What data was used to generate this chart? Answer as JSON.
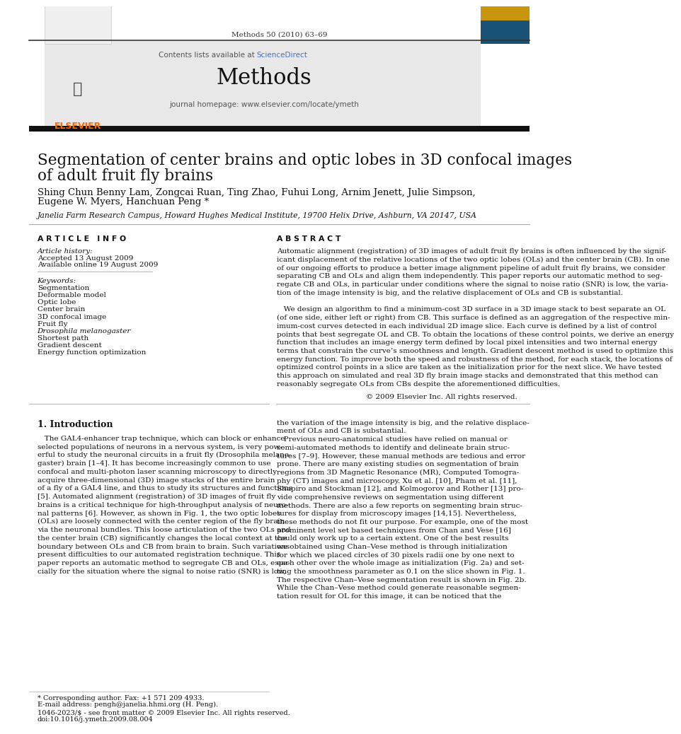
{
  "page_width": 9.92,
  "page_height": 13.23,
  "bg_color": "#ffffff",
  "top_margin_text": "Methods 50 (2010) 63–69",
  "journal_name": "Methods",
  "contents_text": "Contents lists available at ScienceDirect",
  "sciencedirect_color": "#4472c4",
  "homepage_text": "journal homepage: www.elsevier.com/locate/ymeth",
  "header_bg": "#e8e8e8",
  "title_line1": "Segmentation of center brains and optic lobes in 3D confocal images",
  "title_line2": "of adult fruit fly brains",
  "authors_line1": "Shing Chun Benny Lam, Zongcai Ruan, Ting Zhao, Fuhui Long, Arnim Jenett, Julie Simpson,",
  "authors_line2": "Eugene W. Myers, Hanchuan Peng *",
  "affiliation": "Janelia Farm Research Campus, Howard Hughes Medical Institute, 19700 Helix Drive, Ashburn, VA 20147, USA",
  "article_info_header": "A R T I C L E   I N F O",
  "article_history_label": "Article history:",
  "accepted": "Accepted 13 August 2009",
  "available": "Available online 19 August 2009",
  "keywords_header": "Keywords:",
  "keywords": [
    "Segmentation",
    "Deformable model",
    "Optic lobe",
    "Center brain",
    "3D confocal image",
    "Fruit fly",
    "Drosophila melanogaster",
    "Shortest path",
    "Gradient descent",
    "Energy function optimization"
  ],
  "keywords_italic": [
    "Drosophila melanogaster"
  ],
  "abstract_header": "A B S T R A C T",
  "abs_p1": "Automatic alignment (registration) of 3D images of adult fruit fly brains is often influenced by the signif-\nicant displacement of the relative locations of the two optic lobes (OLs) and the center brain (CB). In one\nof our ongoing efforts to produce a better image alignment pipeline of adult fruit fly brains, we consider\nseparating CB and OLs and align them independently. This paper reports our automatic method to seg-\nregate CB and OLs, in particular under conditions where the signal to noise ratio (SNR) is low, the varia-\ntion of the image intensity is big, and the relative displacement of OLs and CB is substantial.",
  "abs_p2": "   We design an algorithm to find a minimum-cost 3D surface in a 3D image stack to best separate an OL\n(of one side, either left or right) from CB. This surface is defined as an aggregation of the respective min-\nimum-cost curves detected in each individual 2D image slice. Each curve is defined by a list of control\npoints that best segregate OL and CB. To obtain the locations of these control points, we derive an energy\nfunction that includes an image energy term defined by local pixel intensities and two internal energy\nterms that constrain the curve’s smoothness and length. Gradient descent method is used to optimize this\nenergy function. To improve both the speed and robustness of the method, for each stack, the locations of\noptimized control points in a slice are taken as the initialization prior for the next slice. We have tested\nthis approach on simulated and real 3D fly brain image stacks and demonstrated that this method can\nreasonably segregate OLs from CBs despite the aforementioned difficulties.",
  "copyright_text": "© 2009 Elsevier Inc. All rights reserved.",
  "section1_header": "1. Introduction",
  "intro_col1": "   The GAL4-enhancer trap technique, which can block or enhance\nselected populations of neurons in a nervous system, is very pow-\nerful to study the neuronal circuits in a fruit fly (Drosophila melano-\ngaster) brain [1–4]. It has become increasingly common to use\nconfocal and multi-photon laser scanning microscopy to directly\nacquire three-dimensional (3D) image stacks of the entire brain\nof a fly of a GAL4 line, and thus to study its structures and functions\n[5]. Automated alignment (registration) of 3D images of fruit fly\nbrains is a critical technique for high-throughput analysis of neuro-\nnal patterns [6]. However, as shown in Fig. 1, the two optic lobes\n(OLs) are loosely connected with the center region of the fly brain\nvia the neuronal bundles. This loose articulation of the two OLs and\nthe center brain (CB) significantly changes the local context at the\nboundary between OLs and CB from brain to brain. Such variations\npresent difficulties to our automated registration technique. This\npaper reports an automatic method to segregate CB and OLs, espe-\ncially for the situation where the signal to noise ratio (SNR) is low,",
  "intro_col2": "the variation of the image intensity is big, and the relative displace-\nment of OLs and CB is substantial.\n   Previous neuro-anatomical studies have relied on manual or\nsemi-automated methods to identify and delineate brain struc-\ntures [7–9]. However, these manual methods are tedious and error\nprone. There are many existing studies on segmentation of brain\nregions from 3D Magnetic Resonance (MR), Computed Tomogra-\nphy (CT) images and microscopy. Xu et al. [10], Pham et al. [11],\nShapiro and Stockman [12], and Kolmogorov and Rother [13] pro-\nvide comprehensive reviews on segmentation using different\nmethods. There are also a few reports on segmenting brain struc-\ntures for display from microscopy images [14,15]. Nevertheless,\nthese methods do not fit our purpose. For example, one of the most\nprominent level set based techniques from Chan and Vese [16]\ncould only work up to a certain extent. One of the best results\nwe obtained using Chan–Vese method is through initialization\nfor which we placed circles of 30 pixels radii one by one next to\neach other over the whole image as initialization (Fig. 2a) and set-\nting the smoothness parameter as 0.1 on the slice shown in Fig. 1.\nThe respective Chan–Vese segmentation result is shown in Fig. 2b.\nWhile the Chan–Vese method could generate reasonable segmen-\ntation result for OL for this image, it can be noticed that the",
  "footer_text1": "* Corresponding author. Fax: +1 571 209 4933.",
  "footer_text2": "E-mail address: pengh@janelia.hhmi.org (H. Peng).",
  "footer_text3": "1046-2023/$ - see front matter © 2009 Elsevier Inc. All rights reserved.",
  "footer_text4": "doi:10.1016/j.ymeth.2009.08.004",
  "elsevier_color": "#ff6600",
  "link_color": "#4472c4",
  "text_color": "#111111",
  "muted_color": "#555555"
}
